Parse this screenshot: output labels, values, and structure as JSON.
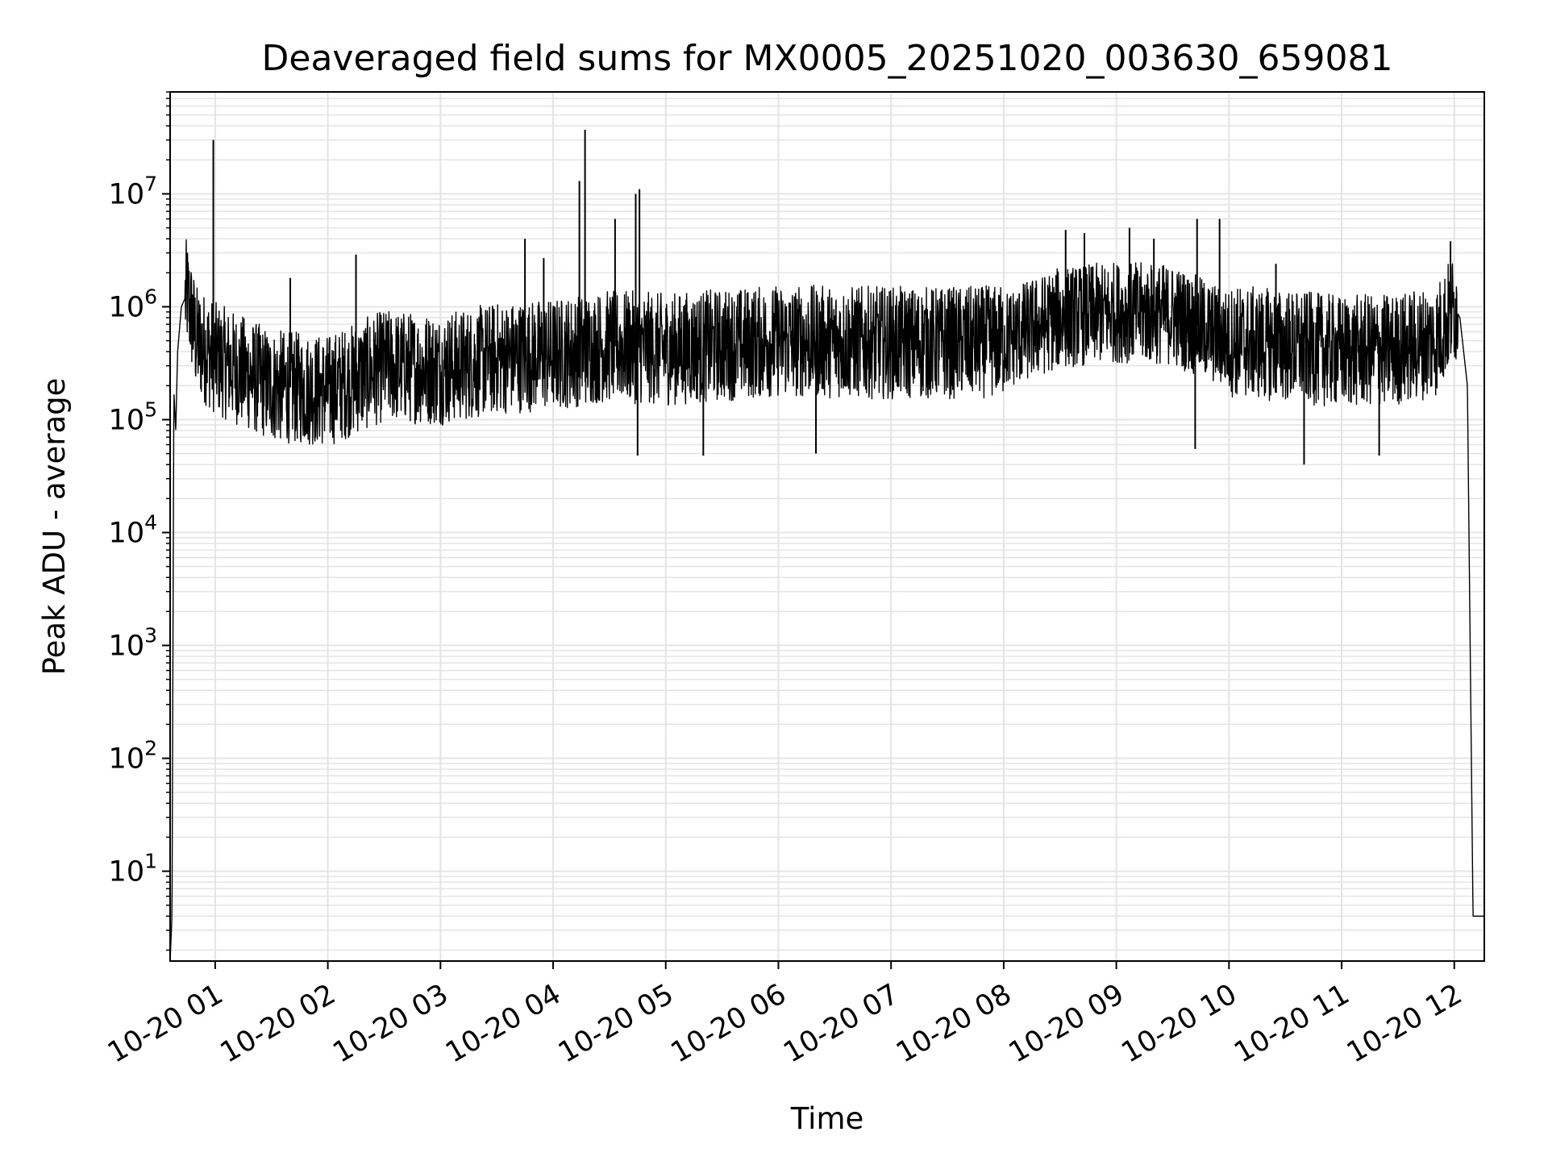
{
  "chart_data": {
    "type": "line",
    "title": "Deaveraged field sums for MX0005_20251020_003630_659081",
    "xlabel": "Time",
    "ylabel": "Peak ADU - average",
    "y_scale": "log",
    "ylim": [
      1.6,
      80000000
    ],
    "xlim": [
      "2025-10-20 00:36",
      "2025-10-20 12:16"
    ],
    "grid": "on",
    "line_color": "#000000",
    "x_ticks": [
      {
        "value": "2025-10-20 01:00",
        "label": "10-20 01"
      },
      {
        "value": "2025-10-20 02:00",
        "label": "10-20 02"
      },
      {
        "value": "2025-10-20 03:00",
        "label": "10-20 03"
      },
      {
        "value": "2025-10-20 04:00",
        "label": "10-20 04"
      },
      {
        "value": "2025-10-20 05:00",
        "label": "10-20 05"
      },
      {
        "value": "2025-10-20 06:00",
        "label": "10-20 06"
      },
      {
        "value": "2025-10-20 07:00",
        "label": "10-20 07"
      },
      {
        "value": "2025-10-20 08:00",
        "label": "10-20 08"
      },
      {
        "value": "2025-10-20 09:00",
        "label": "10-20 09"
      },
      {
        "value": "2025-10-20 10:00",
        "label": "10-20 10"
      },
      {
        "value": "2025-10-20 11:00",
        "label": "10-20 11"
      },
      {
        "value": "2025-10-20 12:00",
        "label": "10-20 12"
      }
    ],
    "y_ticks": [
      {
        "value": 10,
        "base": "10",
        "exp": "1"
      },
      {
        "value": 100,
        "base": "10",
        "exp": "2"
      },
      {
        "value": 1000,
        "base": "10",
        "exp": "3"
      },
      {
        "value": 10000,
        "base": "10",
        "exp": "4"
      },
      {
        "value": 100000,
        "base": "10",
        "exp": "5"
      },
      {
        "value": 1000000,
        "base": "10",
        "exp": "6"
      },
      {
        "value": 10000000,
        "base": "10",
        "exp": "7"
      }
    ],
    "series": [
      {
        "x": [
          "2025-10-20 00:36",
          "2025-10-20 00:37",
          "2025-10-20 00:38",
          "2025-10-20 00:39",
          "2025-10-20 00:40",
          "2025-10-20 00:42",
          "2025-10-20 00:45",
          "2025-10-20 00:50",
          "2025-10-20 01:00",
          "2025-10-20 01:30",
          "2025-10-20 02:00",
          "2025-10-20 02:30",
          "2025-10-20 03:00",
          "2025-10-20 03:30",
          "2025-10-20 04:00",
          "2025-10-20 04:30",
          "2025-10-20 05:00",
          "2025-10-20 06:00",
          "2025-10-20 07:00",
          "2025-10-20 07:40",
          "2025-10-20 08:00",
          "2025-10-20 08:30",
          "2025-10-20 09:00",
          "2025-10-20 09:30",
          "2025-10-20 10:00",
          "2025-10-20 10:30",
          "2025-10-20 11:00",
          "2025-10-20 11:30",
          "2025-10-20 11:50",
          "2025-10-20 12:00",
          "2025-10-20 12:03",
          "2025-10-20 12:07",
          "2025-10-20 12:10",
          "2025-10-20 12:16"
        ],
        "y": [
          1.6,
          4,
          180000,
          80000,
          400000,
          1000000,
          1300000,
          500000,
          350000,
          200000,
          180000,
          300000,
          280000,
          350000,
          380000,
          450000,
          420000,
          500000,
          480000,
          480000,
          500000,
          800000,
          900000,
          850000,
          500000,
          450000,
          400000,
          420000,
          500000,
          1000000,
          800000,
          200000,
          4,
          4
        ]
      }
    ],
    "spikes": [
      {
        "x": "2025-10-20 00:59",
        "y": 30000000
      },
      {
        "x": "2025-10-20 01:40",
        "y": 1800000
      },
      {
        "x": "2025-10-20 02:15",
        "y": 2900000
      },
      {
        "x": "2025-10-20 03:45",
        "y": 4000000
      },
      {
        "x": "2025-10-20 03:55",
        "y": 2700000
      },
      {
        "x": "2025-10-20 04:14",
        "y": 13000000
      },
      {
        "x": "2025-10-20 04:17",
        "y": 37000000
      },
      {
        "x": "2025-10-20 04:33",
        "y": 6000000
      },
      {
        "x": "2025-10-20 04:44",
        "y": 10000000
      },
      {
        "x": "2025-10-20 04:46",
        "y": 11000000
      },
      {
        "x": "2025-10-20 08:33",
        "y": 4800000
      },
      {
        "x": "2025-10-20 08:43",
        "y": 4500000
      },
      {
        "x": "2025-10-20 09:07",
        "y": 5000000
      },
      {
        "x": "2025-10-20 09:20",
        "y": 4000000
      },
      {
        "x": "2025-10-20 09:43",
        "y": 6000000
      },
      {
        "x": "2025-10-20 09:55",
        "y": 6000000
      },
      {
        "x": "2025-10-20 10:25",
        "y": 2400000
      },
      {
        "x": "2025-10-20 11:58",
        "y": 3800000
      }
    ],
    "dips": [
      {
        "x": "2025-10-20 09:42",
        "y": 55000
      },
      {
        "x": "2025-10-20 10:40",
        "y": 40000
      },
      {
        "x": "2025-10-20 11:20",
        "y": 48000
      },
      {
        "x": "2025-10-20 05:20",
        "y": 48000
      },
      {
        "x": "2025-10-20 06:20",
        "y": 50000
      },
      {
        "x": "2025-10-20 04:45",
        "y": 48000
      }
    ]
  }
}
